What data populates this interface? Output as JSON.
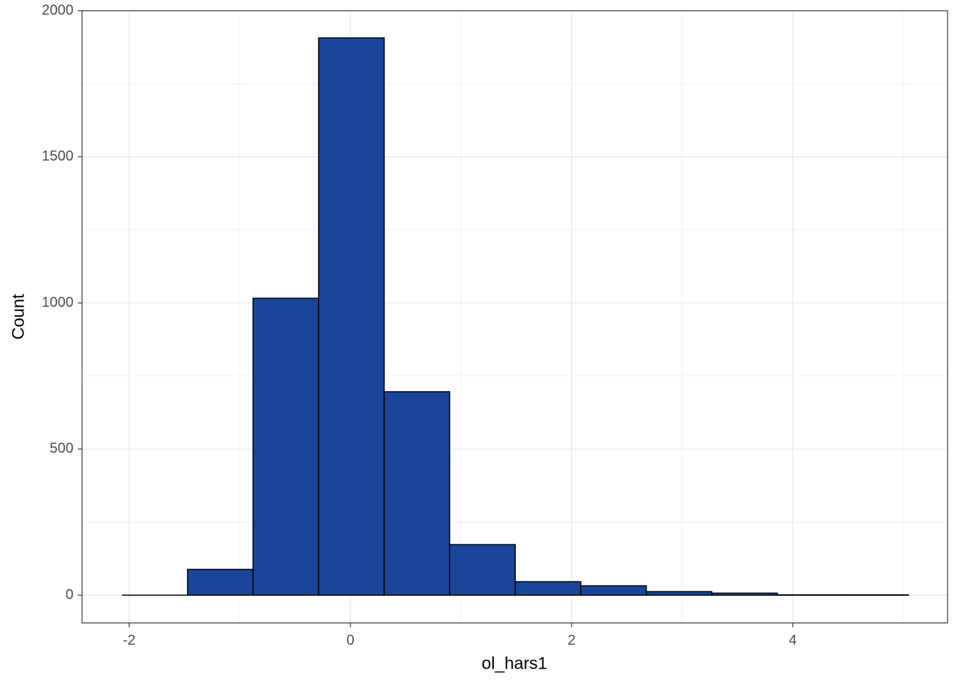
{
  "chart_data": {
    "type": "histogram",
    "x_label": "ol_hars1",
    "y_label": "Count",
    "bins": [
      -2.065,
      -1.472,
      -0.88,
      -0.287,
      0.306,
      0.898,
      1.491,
      2.083,
      2.676,
      3.268,
      3.861,
      4.453,
      5.046
    ],
    "values": [
      0,
      88,
      1016,
      1907,
      696,
      173,
      46,
      32,
      12,
      7,
      1,
      1
    ],
    "color": "#1a4599",
    "edge_color": "#000000",
    "xlim": [
      -2.426,
      5.4
    ],
    "ylim": [
      -95,
      2000
    ],
    "xticks": [
      -2,
      0,
      2,
      4
    ],
    "yticks": [
      0,
      500,
      1000,
      1500,
      2000
    ],
    "minor_xticks": [
      -1,
      1,
      3,
      5
    ],
    "minor_yticks": [
      250,
      750,
      1250,
      1750
    ],
    "grid": true
  }
}
